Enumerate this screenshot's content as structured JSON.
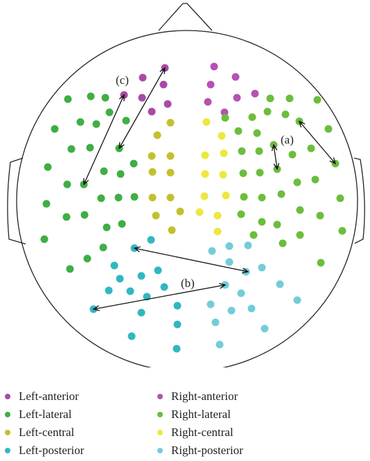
{
  "annotations": [
    {
      "id": "a",
      "text": "(a)"
    },
    {
      "id": "b",
      "text": "(b)"
    },
    {
      "id": "c",
      "text": "(c)"
    }
  ],
  "regions": [
    {
      "key": "left_anterior",
      "label": "Left-anterior",
      "color": "#a84aa6"
    },
    {
      "key": "left_lateral",
      "label": "Left-lateral",
      "color": "#3fae44"
    },
    {
      "key": "left_central",
      "label": "Left-central",
      "color": "#c3c02c"
    },
    {
      "key": "left_posterior",
      "label": "Left-posterior",
      "color": "#31b7c2"
    },
    {
      "key": "right_anterior",
      "label": "Right-anterior",
      "color": "#b453b0"
    },
    {
      "key": "right_lateral",
      "label": "Right-lateral",
      "color": "#6cbd3e"
    },
    {
      "key": "right_central",
      "label": "Right-central",
      "color": "#ece83c"
    },
    {
      "key": "right_posterior",
      "label": "Right-posterior",
      "color": "#73cdd6"
    }
  ]
}
